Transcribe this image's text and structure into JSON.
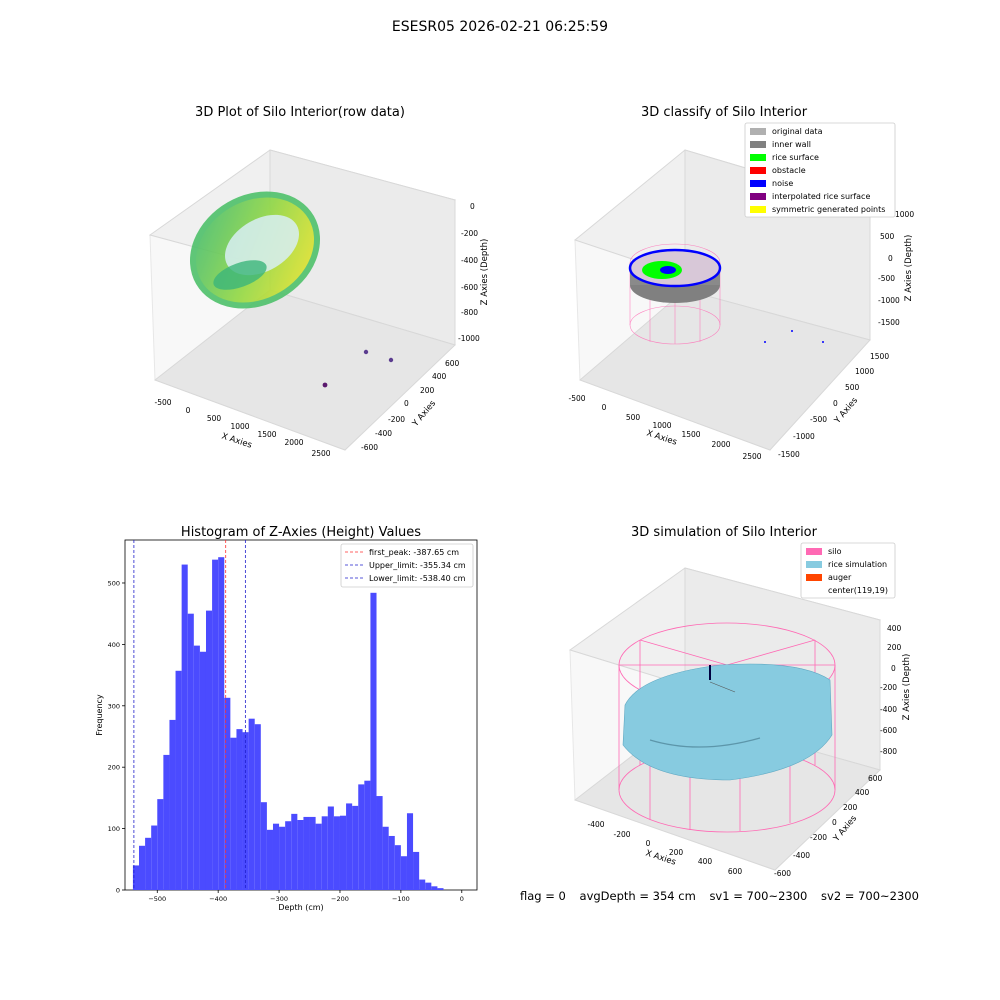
{
  "suptitle": "ESESR05 2026-02-21 06:25:59",
  "status": {
    "flag": "flag = 0",
    "avg_depth": "avgDepth = 354 cm",
    "sv1": "sv1 = 700~2300",
    "sv2": "sv2 = 700~2300"
  },
  "colors": {
    "histogram": "#4b4bff",
    "first_peak": "#ff3030",
    "limit": "#2020cc",
    "silo": "#ff69b4",
    "rice_simulation": "#87cbe0",
    "auger": "#ff4500",
    "original_data": "#b0b0b0",
    "inner_wall": "#808080",
    "rice_surface": "#00ff00",
    "obstacle": "#ff0000",
    "noise": "#0000ff",
    "interpolated_rice_surface": "#800080",
    "symmetric_generated_points": "#ffff00"
  },
  "chart_data": [
    {
      "type": "scatter",
      "title": "3D Plot of Silo Interior(row data)",
      "xlabel": "X Axies",
      "ylabel": "Y Axies",
      "zlabel": "Z Axies (Depth)",
      "x_ticks": [
        "-500",
        "0",
        "500",
        "1000",
        "1500",
        "2000",
        "2500"
      ],
      "y_ticks": [
        "-600",
        "-400",
        "-200",
        "0",
        "200",
        "400",
        "600"
      ],
      "z_ticks": [
        "0",
        "-200",
        "-400",
        "-600",
        "-800",
        "-1000"
      ],
      "xlim": [
        -600,
        2600
      ],
      "ylim": [
        -650,
        650
      ],
      "zlim": [
        -1000,
        0
      ],
      "outliers": [
        {
          "x": 2400,
          "y": 300,
          "z": -800
        },
        {
          "x": 2450,
          "y": 100,
          "z": -820
        },
        {
          "x": 2300,
          "y": -100,
          "z": -950
        }
      ]
    },
    {
      "type": "scatter",
      "title": "3D classify of Silo Interior",
      "xlabel": "X Axies",
      "ylabel": "Y Axies",
      "zlabel": "Z Axies (Depth)",
      "x_ticks": [
        "-500",
        "0",
        "500",
        "1000",
        "1500",
        "2000",
        "2500"
      ],
      "y_ticks": [
        "-1500",
        "-1000",
        "-500",
        "0",
        "500",
        "1000",
        "1500"
      ],
      "z_ticks": [
        "1000",
        "500",
        "0",
        "-500",
        "-1000",
        "-1500"
      ],
      "legend": [
        {
          "label": "original data",
          "color_key": "original_data"
        },
        {
          "label": "inner wall",
          "color_key": "inner_wall"
        },
        {
          "label": "rice surface",
          "color_key": "rice_surface"
        },
        {
          "label": "obstacle",
          "color_key": "obstacle"
        },
        {
          "label": "noise",
          "color_key": "noise"
        },
        {
          "label": "interpolated rice surface",
          "color_key": "interpolated_rice_surface"
        },
        {
          "label": "symmetric generated points",
          "color_key": "symmetric_generated_points"
        }
      ],
      "legend_placement": "upper right"
    },
    {
      "type": "bar",
      "title": "Histogram of Z-Axies (Height) Values",
      "xlabel": "Depth (cm)",
      "ylabel": "Frequency",
      "xlim": [
        -553,
        25
      ],
      "ylim": [
        0,
        570
      ],
      "x_ticks": [
        -500,
        -400,
        -300,
        -200,
        -100,
        0
      ],
      "y_ticks": [
        0,
        100,
        200,
        300,
        400,
        500
      ],
      "bin_start": -540,
      "bin_width": 10,
      "values": [
        40,
        72,
        85,
        105,
        148,
        220,
        277,
        357,
        530,
        450,
        398,
        388,
        455,
        538,
        542,
        313,
        248,
        262,
        257,
        279,
        270,
        143,
        98,
        108,
        103,
        112,
        124,
        114,
        119,
        119,
        108,
        120,
        136,
        120,
        121,
        141,
        137,
        172,
        178,
        484,
        153,
        103,
        88,
        73,
        55,
        125,
        62,
        17,
        12,
        6,
        3
      ],
      "vlines": [
        {
          "x": -387.65,
          "label": "first_peak: -387.65 cm",
          "color_key": "first_peak"
        },
        {
          "x": -355.34,
          "label": "Upper_limit: -355.34 cm",
          "color_key": "limit"
        },
        {
          "x": -538.4,
          "label": "Lower_limit: -538.40 cm",
          "color_key": "limit"
        }
      ],
      "legend_placement": "upper right"
    },
    {
      "type": "surface",
      "title": "3D simulation of Silo Interior",
      "xlabel": "X Axies",
      "ylabel": "Y Axies",
      "zlabel": "Z Axies (Depth)",
      "x_ticks": [
        "-400",
        "-200",
        "0",
        "200",
        "400",
        "600"
      ],
      "y_ticks": [
        "-600",
        "-400",
        "-200",
        "0",
        "200",
        "400",
        "600"
      ],
      "z_ticks": [
        "400",
        "200",
        "0",
        "-200",
        "-400",
        "-600",
        "-800"
      ],
      "legend": [
        {
          "label": "silo",
          "color_key": "silo"
        },
        {
          "label": "rice simulation",
          "color_key": "rice_simulation"
        },
        {
          "label": "auger",
          "color_key": "auger"
        },
        {
          "label": "center(119,19)",
          "color_key": ""
        }
      ],
      "legend_placement": "upper right"
    }
  ]
}
